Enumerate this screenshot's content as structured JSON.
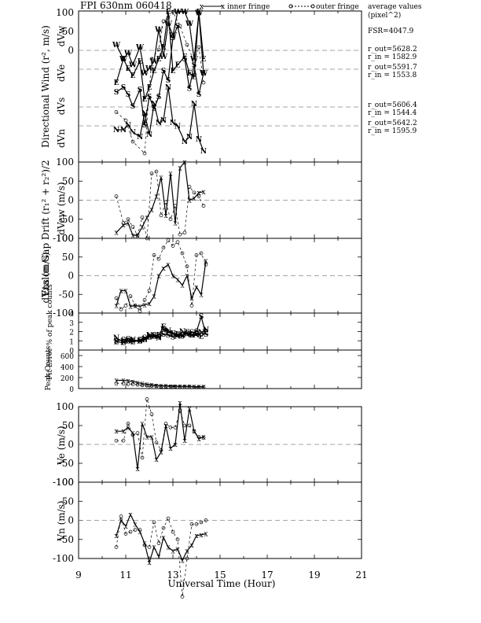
{
  "title": "FPI 630nm 060418",
  "legend": {
    "inner": "inner fringe",
    "outer": "outer fringe",
    "average_values": "average values",
    "unit": "(pixel^2)"
  },
  "info": {
    "fsr": "FSR=4047.9",
    "lines": [
      "r_out=5628.2",
      "r_in = 1582.9",
      "r_out=5591.7",
      "r_in = 1553.8",
      "r_out=5606.4",
      "r_in = 1544.4",
      "r_out=5642.2",
      "r_in = 1595.9"
    ]
  },
  "xaxis": {
    "label": "Universal Time (Hour)",
    "range": [
      9,
      21
    ],
    "ticks": [
      "9",
      "11",
      "13",
      "15",
      "17",
      "19",
      "21"
    ]
  },
  "colors": {
    "axis": "#000000",
    "grid": "#888888",
    "line": "#000000"
  },
  "chart_data": [
    {
      "id": "directional-wind",
      "type": "line",
      "ylabel": "Directional Wind (r², m/s)",
      "dir_labels": [
        "dVw",
        "dVe",
        "dVs",
        "dVn"
      ],
      "ticks": [
        "100",
        "50",
        "0"
      ],
      "inner_lines": [
        {
          "name": "W",
          "x": [
            10.6,
            10.9,
            11.1,
            11.3,
            11.6,
            11.8,
            12.0,
            12.2,
            12.4,
            12.6,
            12.8,
            13.0,
            13.2,
            13.5,
            13.7,
            13.9,
            14.1,
            14.3
          ],
          "y": [
            72,
            60,
            65,
            55,
            70,
            48,
            52,
            58,
            85,
            62,
            90,
            80,
            100,
            100,
            90,
            60,
            99,
            48
          ]
        },
        {
          "name": "E",
          "x": [
            10.6,
            10.9,
            11.1,
            11.3,
            11.6,
            11.8,
            12.0,
            12.2,
            12.4,
            12.6,
            12.8,
            13.0,
            13.2,
            13.5,
            13.7,
            13.9,
            14.1,
            14.3
          ],
          "y": [
            40,
            60,
            52,
            46,
            58,
            26,
            36,
            50,
            60,
            70,
            100,
            50,
            55,
            62,
            48,
            45,
            100,
            60
          ]
        },
        {
          "name": "S",
          "x": [
            10.6,
            10.9,
            11.1,
            11.3,
            11.6,
            11.8,
            12.0,
            12.2,
            12.4,
            12.6,
            12.8,
            13.0,
            13.2,
            13.5,
            13.7,
            13.9,
            14.1,
            14.3
          ],
          "y": [
            32,
            36,
            30,
            20,
            34,
            4,
            28,
            18,
            28,
            50,
            42,
            78,
            88,
            60,
            35,
            55,
            30,
            48
          ]
        },
        {
          "name": "N",
          "x": [
            10.6,
            10.9,
            11.1,
            11.3,
            11.6,
            11.8,
            12.0,
            12.2,
            12.4,
            12.6,
            12.8,
            13.0,
            13.2,
            13.5,
            13.7,
            13.9,
            14.1,
            14.3
          ],
          "y": [
            0,
            0,
            4,
            -2,
            -6,
            14,
            -4,
            22,
            6,
            8,
            36,
            6,
            3,
            -10,
            -6,
            22,
            -8,
            -18
          ]
        }
      ],
      "outer_points": [
        {
          "x": 10.6,
          "y": 15
        },
        {
          "x": 11.0,
          "y": 8
        },
        {
          "x": 11.3,
          "y": -10
        },
        {
          "x": 11.8,
          "y": -20
        },
        {
          "x": 12.1,
          "y": 60
        },
        {
          "x": 12.4,
          "y": 68
        },
        {
          "x": 12.6,
          "y": 92
        },
        {
          "x": 12.8,
          "y": 95
        },
        {
          "x": 13.0,
          "y": 100
        },
        {
          "x": 13.3,
          "y": 88
        },
        {
          "x": 13.6,
          "y": 72
        },
        {
          "x": 13.9,
          "y": 58
        },
        {
          "x": 14.1,
          "y": 70
        },
        {
          "x": 14.3,
          "y": 40
        }
      ]
    },
    {
      "id": "dvew",
      "type": "line",
      "ylabel": "dVew (m/s)",
      "group_label": "Etalon Gap Drift (r₁² + r₂²)/2",
      "ylim": [
        -100,
        100
      ],
      "ticks": [
        "100",
        "50",
        "0",
        "-50",
        "-100"
      ],
      "inner": {
        "x": [
          10.6,
          10.9,
          11.1,
          11.3,
          11.5,
          11.7,
          11.9,
          12.1,
          12.3,
          12.5,
          12.7,
          12.9,
          13.1,
          13.3,
          13.5,
          13.7,
          13.9,
          14.1,
          14.3
        ],
        "y": [
          -85,
          -65,
          -60,
          -92,
          -92,
          -70,
          -45,
          -25,
          10,
          60,
          -40,
          70,
          -60,
          85,
          100,
          0,
          5,
          20,
          22
        ]
      },
      "outer": {
        "x": [
          10.6,
          10.9,
          11.1,
          11.3,
          11.5,
          11.7,
          11.9,
          12.1,
          12.3,
          12.5,
          12.7,
          12.9,
          13.1,
          13.3,
          13.5,
          13.7,
          13.9,
          14.1,
          14.3
        ],
        "y": [
          10,
          -60,
          -50,
          -70,
          -92,
          -45,
          -100,
          70,
          75,
          -40,
          -5,
          -50,
          -15,
          -90,
          -85,
          35,
          20,
          10,
          -15
        ]
      }
    },
    {
      "id": "dvns",
      "type": "line",
      "ylabel": "dVns (m/s)",
      "ylim": [
        -100,
        100
      ],
      "ticks": [
        "100",
        "50",
        "0",
        "-50",
        "-100"
      ],
      "inner": {
        "x": [
          10.6,
          10.8,
          11.0,
          11.2,
          11.4,
          11.6,
          11.8,
          12.0,
          12.2,
          12.4,
          12.6,
          12.8,
          13.0,
          13.2,
          13.4,
          13.6,
          13.8,
          14.0,
          14.2,
          14.4
        ],
        "y": [
          -80,
          -40,
          -40,
          -82,
          -80,
          -82,
          -78,
          -75,
          -55,
          0,
          20,
          30,
          0,
          -10,
          -25,
          0,
          -60,
          -30,
          -50,
          40
        ]
      },
      "outer": {
        "x": [
          10.6,
          10.8,
          11.0,
          11.2,
          11.4,
          11.6,
          11.8,
          12.0,
          12.2,
          12.4,
          12.6,
          12.8,
          13.0,
          13.2,
          13.4,
          13.6,
          13.8,
          14.0,
          14.2,
          14.4
        ],
        "y": [
          -60,
          -90,
          -80,
          -55,
          -80,
          -95,
          -65,
          -40,
          55,
          45,
          75,
          95,
          80,
          90,
          60,
          25,
          -80,
          55,
          60,
          30
        ]
      }
    },
    {
      "id": "fit-error",
      "type": "line",
      "ylabel": "Fit Error % of peak counts",
      "ylim": [
        0,
        4
      ],
      "ticks": [
        "4",
        "3",
        "2",
        "1",
        "0"
      ],
      "inner_lines": [
        {
          "name": "N",
          "x": [
            10.6,
            10.9,
            11.1,
            11.3,
            11.6,
            11.8,
            12.0,
            12.2,
            12.4,
            12.6,
            12.8,
            13.0,
            13.2,
            13.4,
            13.6,
            13.8,
            14.0,
            14.2,
            14.4
          ],
          "y": [
            1.3,
            0.9,
            1.0,
            1.1,
            1.0,
            1.2,
            1.6,
            1.5,
            1.3,
            2.2,
            2.1,
            1.8,
            1.5,
            2.0,
            1.7,
            1.6,
            1.6,
            1.9,
            2.2
          ]
        },
        {
          "name": "S",
          "x": [
            10.6,
            10.9,
            11.1,
            11.3,
            11.6,
            11.8,
            12.0,
            12.2,
            12.4,
            12.6,
            12.8,
            13.0,
            13.2,
            13.4,
            13.6,
            13.8,
            14.0,
            14.2,
            14.4
          ],
          "y": [
            1.0,
            1.1,
            1.2,
            1.0,
            1.1,
            1.3,
            1.4,
            1.6,
            1.4,
            1.7,
            1.6,
            1.4,
            1.6,
            1.5,
            1.8,
            1.9,
            2.0,
            3.6,
            1.7
          ]
        },
        {
          "name": "E",
          "x": [
            10.6,
            10.9,
            11.1,
            11.3,
            11.6,
            11.8,
            12.0,
            12.2,
            12.4,
            12.6,
            12.8,
            13.0,
            13.2,
            13.4,
            13.6,
            13.8,
            14.0,
            14.2,
            14.4
          ],
          "y": [
            0.9,
            0.8,
            1.0,
            0.9,
            1.0,
            1.1,
            1.4,
            1.5,
            1.6,
            2.5,
            1.9,
            1.8,
            1.7,
            1.6,
            1.9,
            1.6,
            1.8,
            1.5,
            1.9
          ]
        }
      ]
    },
    {
      "id": "peak-counts",
      "type": "line",
      "ylabel": "Peak Counts",
      "ylim": [
        0,
        700
      ],
      "ticks": [
        "600",
        "400",
        "200",
        "0"
      ],
      "inner": {
        "x": [
          10.6,
          10.9,
          11.1,
          11.3,
          11.5,
          11.7,
          11.9,
          12.1,
          12.3,
          12.5,
          12.7,
          12.9,
          13.1,
          13.3,
          13.5,
          13.7,
          13.9,
          14.1,
          14.3
        ],
        "y": [
          150,
          150,
          140,
          130,
          110,
          90,
          80,
          70,
          60,
          50,
          50,
          45,
          45,
          40,
          40,
          40,
          35,
          35,
          35
        ]
      },
      "outer": {
        "x": [
          10.6,
          10.9,
          11.1,
          11.3,
          11.5,
          11.7,
          11.9,
          12.1,
          12.3,
          12.5,
          12.7,
          12.9,
          13.1,
          13.3,
          13.5,
          13.7,
          13.9,
          14.1,
          14.3
        ],
        "y": [
          90,
          90,
          80,
          80,
          70,
          60,
          55,
          50,
          45,
          40,
          40,
          35,
          35,
          30,
          30,
          30,
          30,
          25,
          25
        ]
      }
    },
    {
      "id": "ve",
      "type": "line",
      "ylabel": "Ve (m/s)",
      "ylim": [
        -100,
        100
      ],
      "ticks": [
        "100",
        "50",
        "0",
        "-50",
        "-100"
      ],
      "inner": {
        "x": [
          10.6,
          10.9,
          11.1,
          11.3,
          11.5,
          11.7,
          11.9,
          12.1,
          12.3,
          12.5,
          12.7,
          12.9,
          13.1,
          13.3,
          13.5,
          13.7,
          13.9,
          14.1,
          14.3
        ],
        "y": [
          35,
          35,
          45,
          30,
          -65,
          55,
          20,
          20,
          -40,
          -20,
          50,
          -10,
          0,
          110,
          10,
          95,
          35,
          15,
          20
        ]
      },
      "outer": {
        "x": [
          10.6,
          10.9,
          11.1,
          11.3,
          11.5,
          11.7,
          11.9,
          12.1,
          12.3,
          12.5,
          12.7,
          12.9,
          13.1,
          13.3,
          13.5,
          13.7,
          13.9,
          14.1,
          14.3
        ],
        "y": [
          10,
          10,
          55,
          25,
          30,
          -35,
          120,
          80,
          5,
          -15,
          55,
          45,
          45,
          90,
          50,
          50,
          35,
          20,
          18
        ]
      }
    },
    {
      "id": "vn",
      "type": "line",
      "ylabel": "Vn (m/s)",
      "ylim": [
        -100,
        100
      ],
      "ticks": [
        "100",
        "50",
        "0",
        "-50",
        "-100"
      ],
      "inner": {
        "x": [
          10.6,
          10.8,
          11.0,
          11.2,
          11.4,
          11.6,
          11.8,
          12.0,
          12.2,
          12.4,
          12.6,
          12.8,
          13.0,
          13.2,
          13.4,
          13.6,
          13.8,
          14.0,
          14.2,
          14.4
        ],
        "y": [
          -40,
          0,
          -15,
          15,
          -10,
          -30,
          -60,
          -110,
          -70,
          -95,
          -45,
          -70,
          -80,
          -75,
          -105,
          -80,
          -65,
          -40,
          -38,
          -35
        ]
      },
      "outer": {
        "x": [
          10.6,
          10.8,
          11.0,
          11.2,
          11.4,
          11.6,
          11.8,
          12.0,
          12.2,
          12.4,
          12.6,
          12.8,
          13.0,
          13.2,
          13.4,
          13.6,
          13.8,
          14.0,
          14.2,
          14.4
        ],
        "y": [
          -70,
          10,
          -35,
          -30,
          -25,
          -25,
          -65,
          -70,
          -5,
          -60,
          -20,
          5,
          -30,
          -50,
          -200,
          -100,
          -10,
          -10,
          -5,
          0
        ]
      }
    }
  ]
}
